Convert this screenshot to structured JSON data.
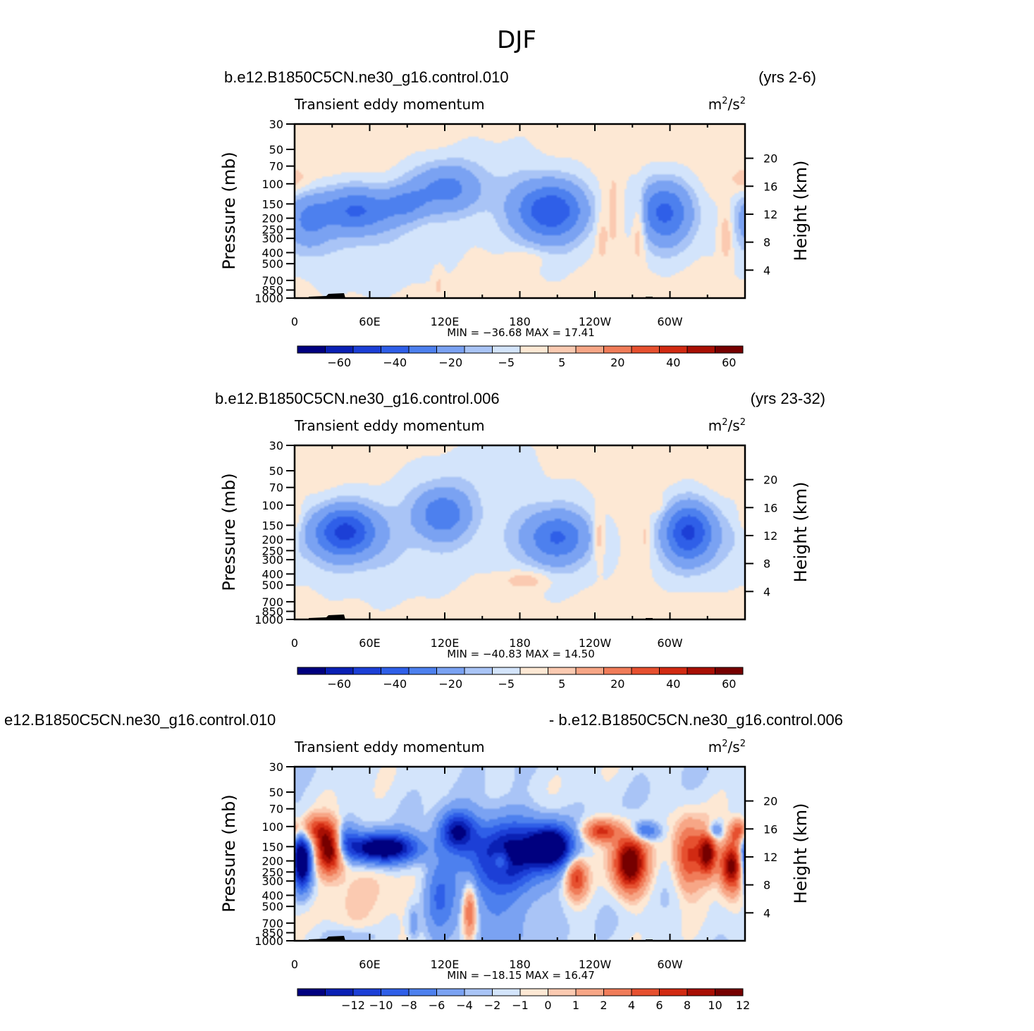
{
  "figure": {
    "title": "DJF",
    "colors": {
      "diverging": [
        "#00007f",
        "#0a20b4",
        "#1c3fd6",
        "#2f5fe8",
        "#4d80ee",
        "#7aa2f2",
        "#a9c4f6",
        "#d3e4fb",
        "#fde8d4",
        "#fbcab1",
        "#f7a686",
        "#f07c59",
        "#e6502f",
        "#d12a12",
        "#a80f04",
        "#760000"
      ]
    },
    "panels": [
      {
        "case_left": "b.e12.B1850C5CN.ne30_g16.control.010",
        "case_right": "(yrs 2-6)",
        "variable": "Transient eddy momentum",
        "units_base": "m",
        "units_exp1": "2",
        "units_mid": "/s",
        "units_exp2": "2",
        "stats": "MIN = −36.68   MAX =   17.41",
        "colorbar_labels": [
          "−60",
          "−40",
          "−20",
          "−5",
          "5",
          "20",
          "40",
          "60"
        ]
      },
      {
        "case_left": "b.e12.B1850C5CN.ne30_g16.control.006",
        "case_right": "(yrs 23-32)",
        "variable": "Transient eddy momentum",
        "units_base": "m",
        "units_exp1": "2",
        "units_mid": "/s",
        "units_exp2": "2",
        "stats": "MIN = −40.83   MAX =   14.50",
        "colorbar_labels": [
          "−60",
          "−40",
          "−20",
          "−5",
          "5",
          "20",
          "40",
          "60"
        ]
      },
      {
        "case_left": "e12.B1850C5CN.ne30_g16.control.010",
        "case_right": "- b.e12.B1850C5CN.ne30_g16.control.006",
        "variable": "Transient eddy momentum",
        "units_base": "m",
        "units_exp1": "2",
        "units_mid": "/s",
        "units_exp2": "2",
        "stats": "MIN = −18.15   MAX =   16.47",
        "colorbar_labels": [
          "−12",
          "−10",
          "−8",
          "−6",
          "−4",
          "−2",
          "−1",
          "0",
          "1",
          "2",
          "4",
          "6",
          "8",
          "10",
          "12"
        ]
      }
    ]
  },
  "chart_data": [
    {
      "type": "heatmap",
      "title": "Transient eddy momentum",
      "subtitle": "b.e12.B1850C5CN.ne30_g16.control.010 (yrs 2-6)",
      "units": "m2/s2",
      "xlabel": "",
      "ylabel": "Pressure (mb)",
      "y2label": "Height (km)",
      "x_ticks": [
        "0",
        "60E",
        "120E",
        "180",
        "120W",
        "60W"
      ],
      "y_ticks": [
        "30",
        "50",
        "70",
        "100",
        "150",
        "200",
        "250",
        "300",
        "400",
        "500",
        "700",
        "850",
        "1000"
      ],
      "y2_ticks": [
        "20",
        "16",
        "12",
        "8",
        "4"
      ],
      "levels": [
        -70,
        -60,
        -50,
        -40,
        -30,
        -20,
        -10,
        -5,
        0,
        5,
        10,
        20,
        30,
        40,
        50,
        60,
        70
      ],
      "min": -36.68,
      "max": 17.41,
      "features": [
        {
          "lon": 50,
          "p": 170,
          "value": -30,
          "sx": 22,
          "sy": 0.2
        },
        {
          "lon": 10,
          "p": 210,
          "value": -18,
          "sx": 12,
          "sy": 0.25
        },
        {
          "lon": 90,
          "p": 150,
          "value": -14,
          "sx": 12,
          "sy": 0.15
        },
        {
          "lon": 120,
          "p": 110,
          "value": -24,
          "sx": 20,
          "sy": 0.22
        },
        {
          "lon": 205,
          "p": 170,
          "value": -36,
          "sx": 20,
          "sy": 0.25
        },
        {
          "lon": 295,
          "p": 170,
          "value": -30,
          "sx": 16,
          "sy": 0.27
        },
        {
          "lon": 0,
          "p": 95,
          "value": 7,
          "sx": 9,
          "sy": 0.12
        },
        {
          "lon": 255,
          "p": 180,
          "value": 7,
          "sx": 6,
          "sy": 0.4
        },
        {
          "lon": 275,
          "p": 230,
          "value": 14,
          "sx": 4,
          "sy": 0.3
        },
        {
          "lon": 345,
          "p": 280,
          "value": 11,
          "sx": 4,
          "sy": 0.25
        },
        {
          "lon": 245,
          "p": 300,
          "value": 6,
          "sx": 3,
          "sy": 0.25
        },
        {
          "lon": 185,
          "p": 450,
          "value": 5.5,
          "sx": 12,
          "sy": 0.08
        },
        {
          "lon": 115,
          "p": 750,
          "value": 5.5,
          "sx": 3,
          "sy": 0.15
        },
        {
          "lon": 50,
          "p": 350,
          "value": -6,
          "sx": 60,
          "sy": 0.45
        },
        {
          "lon": 205,
          "p": 300,
          "value": -6,
          "sx": 25,
          "sy": 0.35
        },
        {
          "lon": 295,
          "p": 250,
          "value": -6,
          "sx": 15,
          "sy": 0.35
        },
        {
          "lon": 170,
          "p": 90,
          "value": -5,
          "sx": 35,
          "sy": 0.4
        }
      ],
      "background": 2.5
    },
    {
      "type": "heatmap",
      "title": "Transient eddy momentum",
      "subtitle": "b.e12.B1850C5CN.ne30_g16.control.006 (yrs 23-32)",
      "units": "m2/s2",
      "xlabel": "",
      "ylabel": "Pressure (mb)",
      "y2label": "Height (km)",
      "x_ticks": [
        "0",
        "60E",
        "120E",
        "180",
        "120W",
        "60W"
      ],
      "y_ticks": [
        "30",
        "50",
        "70",
        "100",
        "150",
        "200",
        "250",
        "300",
        "400",
        "500",
        "700",
        "850",
        "1000"
      ],
      "y2_ticks": [
        "20",
        "16",
        "12",
        "8",
        "4"
      ],
      "levels": [
        -70,
        -60,
        -50,
        -40,
        -30,
        -20,
        -10,
        -5,
        0,
        5,
        10,
        20,
        30,
        40,
        50,
        60,
        70
      ],
      "min": -40.83,
      "max": 14.5,
      "features": [
        {
          "lon": 40,
          "p": 170,
          "value": -40,
          "sx": 18,
          "sy": 0.22
        },
        {
          "lon": 118,
          "p": 120,
          "value": -26,
          "sx": 15,
          "sy": 0.22
        },
        {
          "lon": 210,
          "p": 190,
          "value": -26,
          "sx": 18,
          "sy": 0.22
        },
        {
          "lon": 315,
          "p": 170,
          "value": -38,
          "sx": 14,
          "sy": 0.25
        },
        {
          "lon": 0,
          "p": 130,
          "value": 7,
          "sx": 4,
          "sy": 0.2
        },
        {
          "lon": 243,
          "p": 190,
          "value": 12,
          "sx": 3,
          "sy": 0.2
        },
        {
          "lon": 280,
          "p": 190,
          "value": 6,
          "sx": 3,
          "sy": 0.3
        },
        {
          "lon": 185,
          "p": 450,
          "value": 9,
          "sx": 14,
          "sy": 0.08
        },
        {
          "lon": 290,
          "p": 100,
          "value": 6,
          "sx": 4,
          "sy": 0.07
        },
        {
          "lon": 60,
          "p": 250,
          "value": -7,
          "sx": 60,
          "sy": 0.45
        },
        {
          "lon": 210,
          "p": 250,
          "value": -7,
          "sx": 28,
          "sy": 0.4
        },
        {
          "lon": 315,
          "p": 220,
          "value": -6,
          "sx": 22,
          "sy": 0.4
        },
        {
          "lon": 150,
          "p": 70,
          "value": -5,
          "sx": 50,
          "sy": 0.45
        }
      ],
      "background": 2.5
    },
    {
      "type": "heatmap",
      "title": "Transient eddy momentum",
      "subtitle": "e12.B1850C5CN.ne30_g16.control.010 - b.e12.B1850C5CN.ne30_g16.control.006",
      "units": "m2/s2",
      "xlabel": "",
      "ylabel": "Pressure (mb)",
      "y2label": "Height (km)",
      "x_ticks": [
        "0",
        "60E",
        "120E",
        "180",
        "120W",
        "60W"
      ],
      "y_ticks": [
        "30",
        "50",
        "70",
        "100",
        "150",
        "200",
        "250",
        "300",
        "400",
        "500",
        "700",
        "850",
        "1000"
      ],
      "y2_ticks": [
        "20",
        "16",
        "12",
        "8",
        "4"
      ],
      "levels": [
        -14,
        -12,
        -10,
        -8,
        -6,
        -4,
        -2,
        -1,
        0,
        1,
        2,
        4,
        6,
        8,
        10,
        12,
        14
      ],
      "min": -18.15,
      "max": 16.47,
      "features": [
        {
          "lon": 5,
          "p": 200,
          "value": -18,
          "sx": 6,
          "sy": 0.25
        },
        {
          "lon": 28,
          "p": 160,
          "value": 16,
          "sx": 8,
          "sy": 0.2
        },
        {
          "lon": 15,
          "p": 105,
          "value": 7,
          "sx": 10,
          "sy": 0.12
        },
        {
          "lon": 70,
          "p": 155,
          "value": -16,
          "sx": 20,
          "sy": 0.13
        },
        {
          "lon": 40,
          "p": 130,
          "value": -6,
          "sx": 6,
          "sy": 0.15
        },
        {
          "lon": 130,
          "p": 110,
          "value": -11,
          "sx": 10,
          "sy": 0.17
        },
        {
          "lon": 170,
          "p": 170,
          "value": -12,
          "sx": 22,
          "sy": 0.3
        },
        {
          "lon": 205,
          "p": 150,
          "value": -15,
          "sx": 12,
          "sy": 0.18
        },
        {
          "lon": 115,
          "p": 400,
          "value": -5,
          "sx": 8,
          "sy": 0.35
        },
        {
          "lon": 140,
          "p": 550,
          "value": 8,
          "sx": 4,
          "sy": 0.25
        },
        {
          "lon": 165,
          "p": 200,
          "value": 6,
          "sx": 5,
          "sy": 0.1
        },
        {
          "lon": 225,
          "p": 280,
          "value": 9,
          "sx": 6,
          "sy": 0.18
        },
        {
          "lon": 245,
          "p": 110,
          "value": 9,
          "sx": 10,
          "sy": 0.1
        },
        {
          "lon": 268,
          "p": 210,
          "value": 16,
          "sx": 9,
          "sy": 0.25
        },
        {
          "lon": 280,
          "p": 110,
          "value": -7,
          "sx": 8,
          "sy": 0.08
        },
        {
          "lon": 315,
          "p": 180,
          "value": 9,
          "sx": 8,
          "sy": 0.3
        },
        {
          "lon": 330,
          "p": 170,
          "value": 13,
          "sx": 5,
          "sy": 0.2
        },
        {
          "lon": 335,
          "p": 110,
          "value": -6,
          "sx": 5,
          "sy": 0.08
        },
        {
          "lon": 350,
          "p": 220,
          "value": 15,
          "sx": 7,
          "sy": 0.22
        },
        {
          "lon": 355,
          "p": 110,
          "value": 7,
          "sx": 5,
          "sy": 0.1
        },
        {
          "lon": 160,
          "p": 600,
          "value": -3,
          "sx": 25,
          "sy": 0.45
        },
        {
          "lon": 60,
          "p": 500,
          "value": 1.5,
          "sx": 30,
          "sy": 0.5
        },
        {
          "lon": 45,
          "p": 900,
          "value": -2,
          "sx": 15,
          "sy": 0.08
        },
        {
          "lon": 95,
          "p": 700,
          "value": -3,
          "sx": 3,
          "sy": 0.15
        }
      ],
      "background": -0.6
    }
  ]
}
